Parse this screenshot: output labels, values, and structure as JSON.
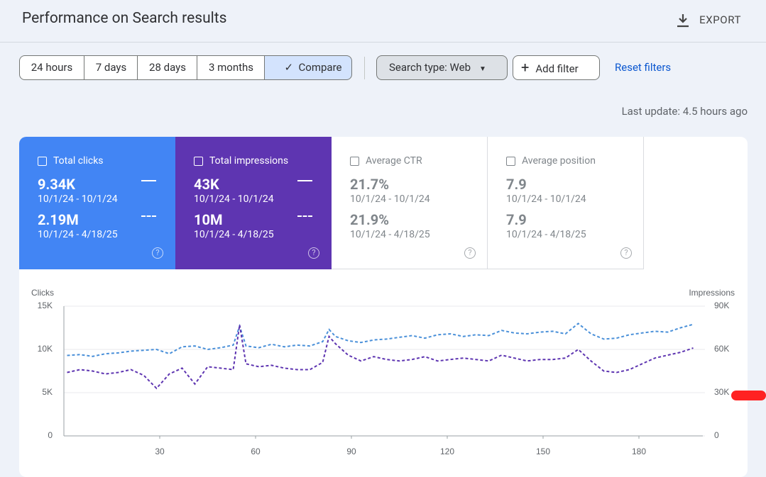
{
  "header": {
    "title": "Performance on Search results",
    "export": "EXPORT"
  },
  "toolbar": {
    "ranges": [
      "24 hours",
      "7 days",
      "28 days",
      "3 months"
    ],
    "compare": "Compare",
    "search_type": "Search type: Web",
    "add_filter": "Add filter",
    "reset": "Reset filters"
  },
  "last_update": "Last update: 4.5 hours ago",
  "metrics": [
    {
      "label": "Total clicks",
      "value": "9.34K",
      "range": "10/1/24 - 10/1/24",
      "compare_value": "2.19M",
      "compare_range": "10/1/24 - 4/18/25"
    },
    {
      "label": "Total impressions",
      "value": "43K",
      "range": "10/1/24 - 10/1/24",
      "compare_value": "10M",
      "compare_range": "10/1/24 - 4/18/25"
    },
    {
      "label": "Average CTR",
      "value": "21.7%",
      "range": "10/1/24 - 10/1/24",
      "compare_value": "21.9%",
      "compare_range": "10/1/24 - 4/18/25"
    },
    {
      "label": "Average position",
      "value": "7.9",
      "range": "10/1/24 - 10/1/24",
      "compare_value": "7.9",
      "compare_range": "10/1/24 - 4/18/25"
    }
  ],
  "chart_data": {
    "type": "line",
    "y_label": "Clicks",
    "y2_label": "Impressions",
    "x": [
      1,
      5,
      9,
      13,
      17,
      21,
      25,
      29,
      33,
      37,
      41,
      45,
      49,
      53,
      55,
      57,
      61,
      65,
      69,
      73,
      77,
      81,
      83,
      85,
      89,
      93,
      97,
      101,
      105,
      109,
      113,
      117,
      121,
      125,
      129,
      133,
      137,
      141,
      145,
      149,
      153,
      157,
      161,
      165,
      169,
      173,
      177,
      181,
      185,
      189,
      193,
      197
    ],
    "xlim": [
      0,
      200
    ],
    "xticks": [
      30,
      60,
      90,
      120,
      150,
      180
    ],
    "ylim": [
      0,
      15000
    ],
    "yticks": [
      0,
      {
        "value": 5000,
        "label": "5K"
      },
      {
        "value": 10000,
        "label": "10K"
      },
      {
        "value": 15000,
        "label": "15K"
      }
    ],
    "y2lim": [
      0,
      90000
    ],
    "y2ticks": [
      0,
      {
        "value": 30000,
        "label": "30K"
      },
      {
        "value": 60000,
        "label": "60K"
      },
      {
        "value": 90000,
        "label": "90K"
      }
    ],
    "grid": true,
    "series": [
      {
        "name": "Clicks",
        "color": "#4a90d9",
        "values": [
          9300,
          9400,
          9200,
          9500,
          9600,
          9800,
          9900,
          10000,
          9500,
          10300,
          10400,
          10000,
          10200,
          10500,
          12700,
          10400,
          10200,
          10600,
          10300,
          10500,
          10400,
          10900,
          12300,
          11500,
          11000,
          10800,
          11100,
          11200,
          11400,
          11600,
          11300,
          11700,
          11800,
          11500,
          11700,
          11600,
          12200,
          11900,
          11800,
          12000,
          12100,
          11800,
          13000,
          11800,
          11200,
          11300,
          11700,
          11900,
          12100,
          12000,
          12500,
          12900
        ]
      },
      {
        "name": "Impressions",
        "color": "#5e35b1",
        "axis": "y2",
        "values": [
          44000,
          46000,
          45000,
          43000,
          44000,
          46000,
          42000,
          33000,
          43000,
          47000,
          36000,
          48000,
          47000,
          46000,
          77000,
          50000,
          48000,
          49000,
          47000,
          46000,
          46000,
          51000,
          69000,
          64000,
          56000,
          52000,
          55000,
          53000,
          52000,
          53000,
          55000,
          52000,
          53000,
          54000,
          53000,
          52000,
          56000,
          54000,
          52000,
          53000,
          53000,
          54000,
          60000,
          52000,
          45000,
          44000,
          46000,
          50000,
          54000,
          56000,
          58000,
          61000
        ]
      }
    ]
  }
}
